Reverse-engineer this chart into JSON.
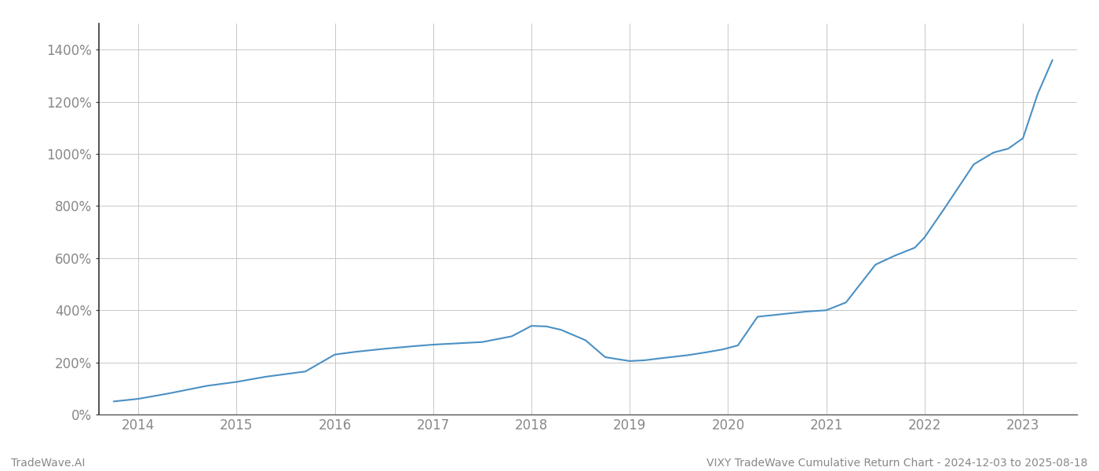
{
  "title": "VIXY TradeWave Cumulative Return Chart - 2024-12-03 to 2025-08-18",
  "watermark": "TradeWave.AI",
  "line_color": "#4a90c4",
  "background_color": "#ffffff",
  "grid_color": "#c8c8c8",
  "x_years": [
    2014,
    2015,
    2016,
    2017,
    2018,
    2019,
    2020,
    2021,
    2022,
    2023
  ],
  "x_values": [
    2013.75,
    2014.0,
    2014.3,
    2014.7,
    2015.0,
    2015.3,
    2015.7,
    2016.0,
    2016.2,
    2016.5,
    2016.8,
    2017.0,
    2017.2,
    2017.5,
    2017.8,
    2018.0,
    2018.15,
    2018.3,
    2018.55,
    2018.75,
    2019.0,
    2019.15,
    2019.3,
    2019.6,
    2019.8,
    2019.95,
    2020.1,
    2020.3,
    2020.55,
    2020.8,
    2021.0,
    2021.2,
    2021.5,
    2021.7,
    2021.9,
    2022.0,
    2022.2,
    2022.5,
    2022.7,
    2022.85,
    2023.0,
    2023.15,
    2023.3
  ],
  "y_values": [
    50,
    60,
    80,
    110,
    125,
    145,
    165,
    230,
    240,
    252,
    262,
    268,
    272,
    278,
    300,
    340,
    338,
    325,
    285,
    220,
    205,
    208,
    215,
    228,
    240,
    250,
    265,
    375,
    385,
    395,
    400,
    430,
    575,
    610,
    640,
    680,
    790,
    960,
    1005,
    1020,
    1060,
    1230,
    1360
  ],
  "ylim": [
    0,
    1500
  ],
  "yticks": [
    0,
    200,
    400,
    600,
    800,
    1000,
    1200,
    1400
  ],
  "xlim": [
    2013.6,
    2023.55
  ],
  "title_fontsize": 10,
  "watermark_fontsize": 10,
  "tick_fontsize": 12,
  "line_width": 1.5,
  "tick_color": "#888888",
  "left_spine_color": "#333333",
  "bottom_spine_color": "#555555"
}
